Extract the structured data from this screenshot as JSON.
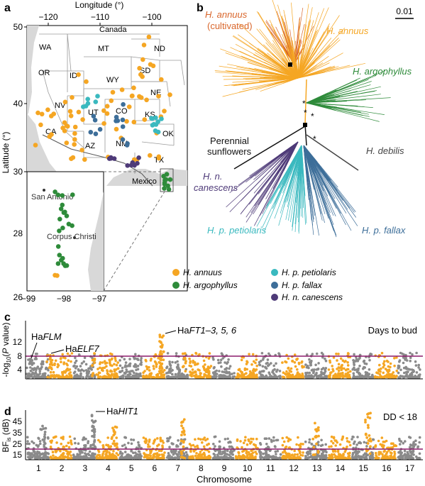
{
  "panels": {
    "a": {
      "label": "a",
      "x_axis_title": "Longitude (°)",
      "y_axis_title": "Latitude (°)",
      "top_ticks": [
        "−120",
        "−110",
        "−100"
      ],
      "left_ticks": [
        "50",
        "40",
        "30"
      ],
      "inset_left_ticks": [
        "30",
        "28",
        "26"
      ],
      "inset_bottom_ticks": [
        "−99",
        "−98",
        "−97"
      ],
      "states": [
        "WA",
        "MT",
        "ND",
        "OR",
        "ID",
        "SD",
        "WY",
        "NE",
        "NV",
        "UT",
        "CO",
        "KS",
        "CA",
        "AZ",
        "NM",
        "OK",
        "TX"
      ],
      "country_labels": [
        "Canada",
        "Mexico"
      ],
      "city_labels": [
        "San Antonio",
        "Corpus Christi"
      ],
      "legend": [
        {
          "label": "H. annuus",
          "color": "#f5a623"
        },
        {
          "label": "H. argophyllus",
          "color": "#2e8b3a"
        },
        {
          "label": "H. p. petiolaris",
          "color": "#3ab9bf"
        },
        {
          "label": "H. p. fallax",
          "color": "#3d6e99"
        },
        {
          "label": "H. n. canescens",
          "color": "#4e3a78"
        }
      ]
    },
    "b": {
      "label": "b",
      "scale_bar": "0.01",
      "clade_labels": [
        {
          "text": "H. annuus (cultivated)",
          "color": "#d9662b"
        },
        {
          "text": "H. annuus",
          "color": "#f5a623"
        },
        {
          "text": "H. argophyllus",
          "color": "#2e8b3a"
        },
        {
          "text": "Perennial sunflowers",
          "color": "#111111"
        },
        {
          "text": "H. debilis",
          "color": "#444444"
        },
        {
          "text": "H. n. canescens",
          "color": "#4e3a78"
        },
        {
          "text": "H. p. petiolaris",
          "color": "#3ab9bf"
        },
        {
          "text": "H. p. fallax",
          "color": "#3d6e99"
        }
      ]
    },
    "c": {
      "label": "c",
      "y_axis_title": "-log10(P value)",
      "y_ticks": [
        "4",
        "8",
        "12"
      ],
      "annotation_top_right": "Days to bud",
      "gene_labels": [
        "HaFLM",
        "HaELF7",
        "HaFT1–3, 5, 6"
      ]
    },
    "d": {
      "label": "d",
      "y_axis_title": "BFis (dB)",
      "y_ticks": [
        "15",
        "25",
        "35",
        "45"
      ],
      "annotation_top_right": "DD < 18",
      "gene_labels": [
        "HaHIT1"
      ],
      "x_axis_title": "Chromosome",
      "chromosomes": [
        "1",
        "2",
        "3",
        "4",
        "5",
        "6",
        "7",
        "8",
        "9",
        "10",
        "11",
        "12",
        "13",
        "14",
        "15",
        "16",
        "17"
      ]
    }
  },
  "colors": {
    "annuus": "#f5a623",
    "argophyllus": "#2e8b3a",
    "petiolaris": "#3ab9bf",
    "fallax": "#3d6e99",
    "canescens": "#4e3a78",
    "cultivated": "#d9662b",
    "manhattan_gray": "#8a8a8a",
    "threshold": "#8b1a6b"
  }
}
